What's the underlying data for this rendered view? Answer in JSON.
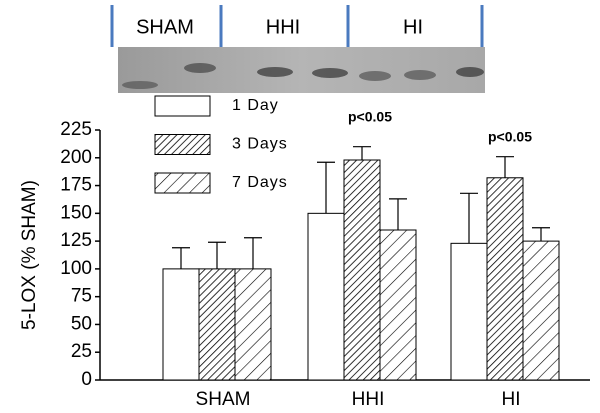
{
  "chart_data": {
    "type": "bar",
    "blot_labels": [
      "SHAM",
      "HHI",
      "HI"
    ],
    "ylabel": "5-LOX (% SHAM)",
    "categories": [
      "SHAM",
      "HHI",
      "HI"
    ],
    "series": [
      {
        "name": "1 Day",
        "color": "#ffffff",
        "hatch": "none",
        "values": [
          100,
          150,
          123
        ],
        "errors": [
          19,
          46,
          45
        ]
      },
      {
        "name": "3 Days",
        "color": "#ffffff",
        "hatch": "dense",
        "values": [
          100,
          198,
          182
        ],
        "errors": [
          24,
          12,
          19
        ]
      },
      {
        "name": "7 Days",
        "color": "#ffffff",
        "hatch": "sparse",
        "values": [
          100,
          135,
          125
        ],
        "errors": [
          28,
          28,
          12
        ]
      }
    ],
    "annotations": [
      "p<0.05",
      "p<0.05"
    ],
    "ylim": [
      0,
      225
    ],
    "yticks": [
      0,
      25,
      50,
      75,
      100,
      125,
      150,
      175,
      200,
      225
    ]
  }
}
